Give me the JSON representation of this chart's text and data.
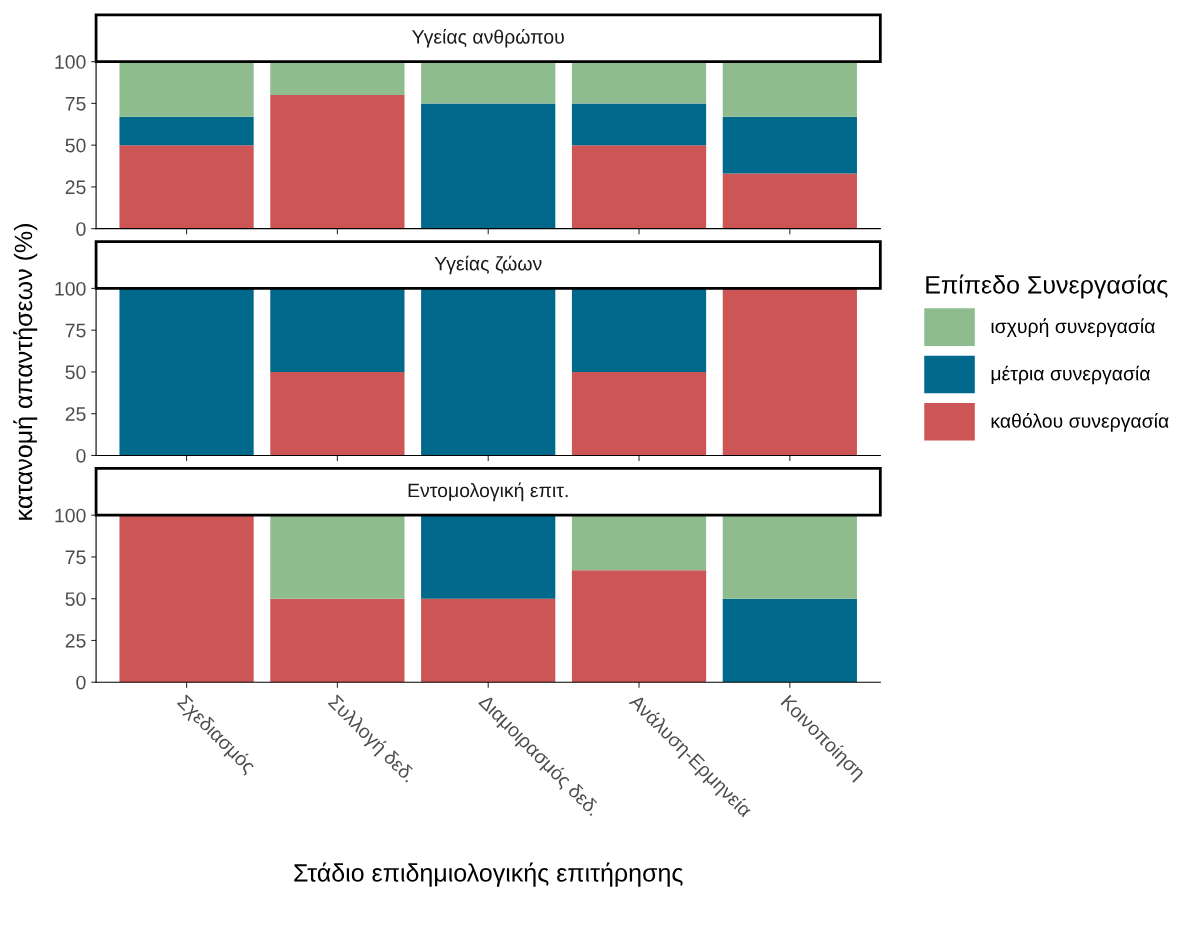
{
  "chart_data": [
    {
      "type": "bar",
      "stacked": true,
      "title": "Υγείας ανθρώπου",
      "legend_title": "Επίπεδο Συνεργασίας",
      "categories": [
        null,
        null,
        null,
        null,
        null
      ],
      "ylim": [
        0,
        100
      ],
      "yticks": [
        0,
        25,
        50,
        75,
        100
      ],
      "grid": false,
      "legend": "right",
      "tick_labels": "y",
      "series": [
        {
          "name": "καθόλου συνεργασία",
          "color": "#cd5555",
          "values": [
            50,
            80,
            0,
            50,
            33
          ]
        },
        {
          "name": "μέτρια συνεργασία",
          "color": "#00688b",
          "values": [
            17,
            0,
            75,
            25,
            34
          ]
        },
        {
          "name": "ισχυρή συνεργασία",
          "color": "#8fbc8f",
          "values": [
            33,
            20,
            25,
            25,
            33
          ]
        }
      ]
    },
    {
      "type": "bar",
      "stacked": true,
      "title": "Υγείας ζώων",
      "ylabel": "κατανομή απαντήσεων (%)",
      "categories": [
        null,
        null,
        null,
        null,
        null
      ],
      "ylim": [
        0,
        100
      ],
      "yticks": [
        0,
        25,
        50,
        75,
        100
      ],
      "grid": false,
      "tick_labels": "y",
      "series": [
        {
          "color": "#cd5555",
          "values": [
            0,
            50,
            0,
            50,
            100
          ]
        },
        {
          "color": "#00688b",
          "values": [
            100,
            50,
            100,
            50,
            0
          ]
        },
        {
          "color": "#8fbc8f",
          "values": [
            0,
            0,
            0,
            0,
            0
          ]
        }
      ]
    },
    {
      "type": "bar",
      "stacked": true,
      "title": "Εντομολογική επιτ.",
      "xlabel": "Στάδιο επιδημιολογικής επιτήρησης",
      "categories": [
        "Σχεδιασμός",
        "Συλλογή δεδ.",
        "Διαμοιρασμός δεδ.",
        "Ανάλυση-Ερμηνεία",
        "Κοινοποίηση"
      ],
      "ylim": [
        0,
        100
      ],
      "yticks": [
        0,
        25,
        50,
        75,
        100
      ],
      "grid": false,
      "series": [
        {
          "color": "#cd5555",
          "values": [
            100,
            50,
            50,
            67,
            0
          ]
        },
        {
          "color": "#00688b",
          "values": [
            0,
            0,
            50,
            0,
            50
          ]
        },
        {
          "color": "#8fbc8f",
          "values": [
            0,
            50,
            0,
            33,
            50
          ]
        }
      ]
    }
  ]
}
